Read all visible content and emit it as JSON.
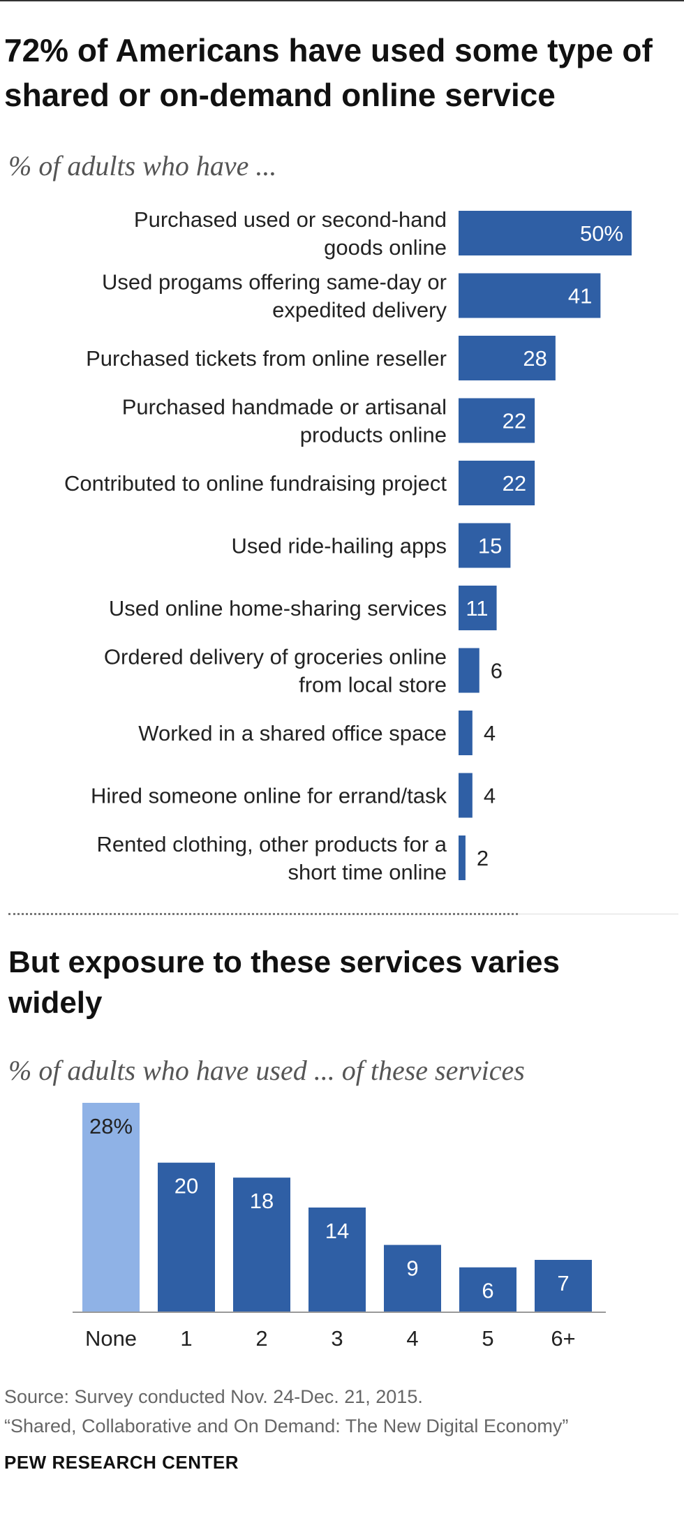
{
  "title": "72% of Americans have used some type of shared or on-demand  online service",
  "subtitle1": "% of adults who have ...",
  "heading2": "But exposure to these services varies widely",
  "subtitle2": "% of adults who have used ... of these services",
  "source_line1": "Source: Survey conducted Nov. 24-Dec. 21, 2015.",
  "source_line2": "“Shared, Collaborative and On Demand: The New Digital Economy”",
  "brand": "PEW RESEARCH CENTER",
  "colors": {
    "bar": "#2f5fa5",
    "bar_light": "#8fb2e6"
  },
  "chart_data": [
    {
      "type": "bar",
      "orientation": "horizontal",
      "categories": [
        [
          "Purchased used or second-hand",
          "goods online"
        ],
        [
          "Used progams offering same-day or",
          "expedited delivery"
        ],
        [
          "Purchased tickets from online reseller"
        ],
        [
          "Purchased handmade or artisanal",
          "products online"
        ],
        [
          "Contributed to online fundraising project"
        ],
        [
          "Used ride-hailing apps"
        ],
        [
          "Used online home-sharing services"
        ],
        [
          "Ordered delivery of groceries online",
          "from local store"
        ],
        [
          "Worked in a shared office space"
        ],
        [
          "Hired someone online for errand/task"
        ],
        [
          "Rented clothing, other products for a",
          "short time online"
        ]
      ],
      "values": [
        50,
        41,
        28,
        22,
        22,
        15,
        11,
        6,
        4,
        4,
        2
      ],
      "value_labels": [
        "50%",
        "41",
        "28",
        "22",
        "22",
        "15",
        "11",
        "6",
        "4",
        "4",
        "2"
      ],
      "xlim": [
        0,
        50
      ]
    },
    {
      "type": "bar",
      "orientation": "vertical",
      "categories": [
        "None",
        "1",
        "2",
        "3",
        "4",
        "5",
        "6+"
      ],
      "values": [
        28,
        20,
        18,
        14,
        9,
        6,
        7
      ],
      "value_labels": [
        "28%",
        "20",
        "18",
        "14",
        "9",
        "6",
        "7"
      ],
      "ylim": [
        0,
        28
      ]
    }
  ]
}
